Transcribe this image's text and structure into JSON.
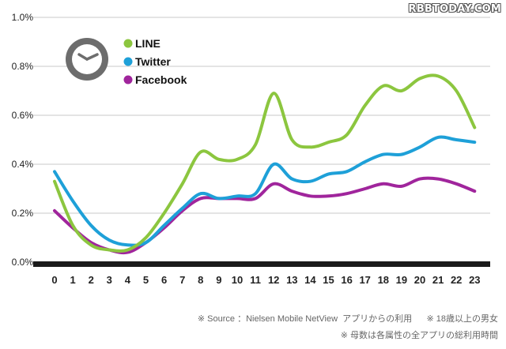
{
  "watermark": "RBBTODAY.COM",
  "chart_data": {
    "type": "line",
    "title": "",
    "xlabel": "",
    "ylabel": "",
    "x": [
      0,
      1,
      2,
      3,
      4,
      5,
      6,
      7,
      8,
      9,
      10,
      11,
      12,
      13,
      14,
      15,
      16,
      17,
      18,
      19,
      20,
      21,
      22,
      23
    ],
    "xticks": [
      "0",
      "1",
      "2",
      "3",
      "4",
      "5",
      "6",
      "7",
      "8",
      "9",
      "10",
      "11",
      "12",
      "13",
      "14",
      "15",
      "16",
      "17",
      "18",
      "19",
      "20",
      "21",
      "22",
      "23"
    ],
    "ylim": [
      0,
      1.0
    ],
    "yticks": [
      0,
      0.2,
      0.4,
      0.6,
      0.8,
      1.0
    ],
    "ytick_labels": [
      "0.0%",
      "0.2%",
      "0.4%",
      "0.6%",
      "0.8%",
      "1.0%"
    ],
    "grid": true,
    "legend_position": "top-left",
    "series": [
      {
        "name": "LINE",
        "color": "#8cc63f",
        "values": [
          0.33,
          0.15,
          0.07,
          0.05,
          0.05,
          0.1,
          0.2,
          0.32,
          0.45,
          0.42,
          0.42,
          0.48,
          0.69,
          0.5,
          0.47,
          0.49,
          0.52,
          0.64,
          0.72,
          0.7,
          0.75,
          0.76,
          0.7,
          0.55
        ]
      },
      {
        "name": "Twitter",
        "color": "#1ea0d8",
        "values": [
          0.37,
          0.25,
          0.15,
          0.09,
          0.07,
          0.08,
          0.15,
          0.22,
          0.28,
          0.26,
          0.27,
          0.28,
          0.4,
          0.34,
          0.33,
          0.36,
          0.37,
          0.41,
          0.44,
          0.44,
          0.47,
          0.51,
          0.5,
          0.49
        ]
      },
      {
        "name": "Facebook",
        "color": "#a0259c",
        "values": [
          0.21,
          0.14,
          0.08,
          0.05,
          0.04,
          0.08,
          0.14,
          0.21,
          0.26,
          0.26,
          0.26,
          0.26,
          0.32,
          0.29,
          0.27,
          0.27,
          0.28,
          0.3,
          0.32,
          0.31,
          0.34,
          0.34,
          0.32,
          0.29
        ]
      }
    ]
  },
  "legend_icon": "clock-icon",
  "source_line1": "※ Source ：Nielsen Mobile NetView  アプリからの利用      ※ 18歳以上の男女",
  "source_line2": "※ 母数は各属性の全アプリの総利用時間"
}
